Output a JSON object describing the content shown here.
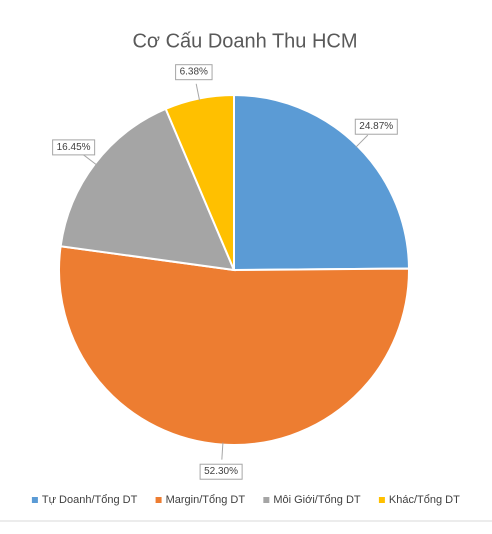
{
  "chart_data": {
    "type": "pie",
    "title": "Cơ Cấu Doanh Thu HCM",
    "categories": [
      "Tự Doanh/Tổng DT",
      "Margin/Tổng DT",
      "Môi Giới/Tổng DT",
      "Khác/Tổng DT"
    ],
    "values": [
      24.87,
      52.3,
      16.45,
      6.38
    ],
    "value_labels": [
      "24.87%",
      "52.30%",
      "16.45%",
      "6.38%"
    ],
    "colors": [
      "#5b9bd5",
      "#ed7d31",
      "#a5a5a5",
      "#ffc000"
    ],
    "legend": "bottom"
  }
}
